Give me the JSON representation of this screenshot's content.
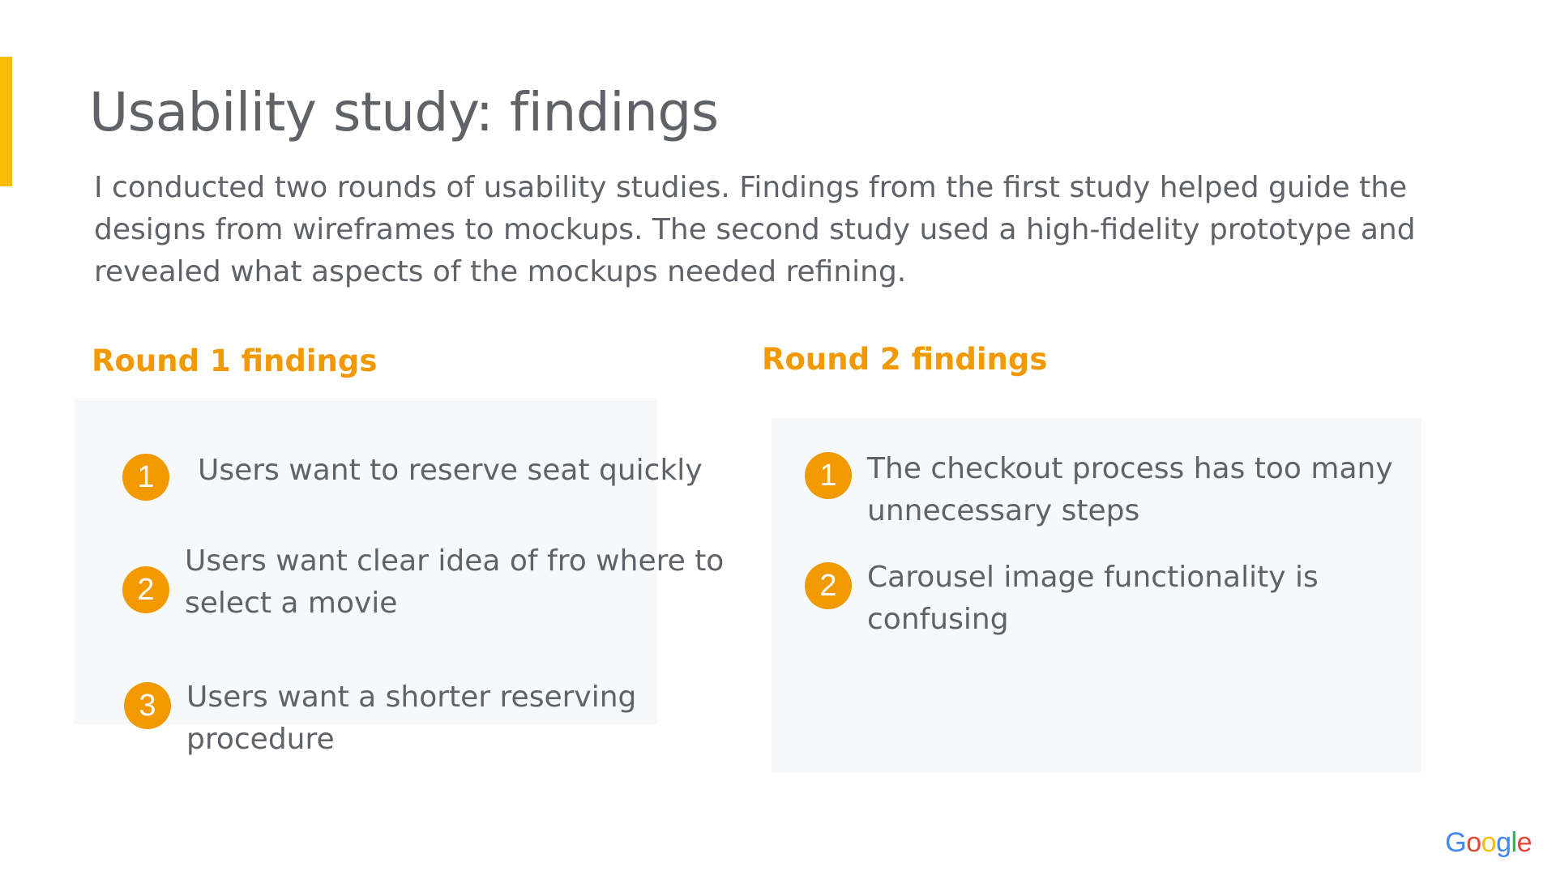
{
  "slide": {
    "title": "Usability study: findings",
    "intro": "I conducted two rounds of usability studies. Findings from the first study helped guide the designs from wireframes to mockups. The second study used a high-fidelity prototype and revealed what aspects of the mockups needed refining."
  },
  "round1": {
    "heading": "Round 1 findings",
    "findings": [
      {
        "number": "1",
        "text": "Users want to reserve seat quickly"
      },
      {
        "number": "2",
        "text": "Users want clear idea of fro where to select a movie"
      },
      {
        "number": "3",
        "text": "Users want a shorter reserving procedure"
      }
    ]
  },
  "round2": {
    "heading": "Round 2 findings",
    "findings": [
      {
        "number": "1",
        "text": "The checkout process has too many unnecessary steps"
      },
      {
        "number": "2",
        "text": "Carousel image functionality is confusing"
      }
    ]
  },
  "logo": {
    "name": "Google",
    "letters": [
      "G",
      "o",
      "o",
      "g",
      "l",
      "e"
    ]
  },
  "colors": {
    "accent": "#fbbc04",
    "heading": "#f29900",
    "badge": "#f29900",
    "text": "#5f6368",
    "panel": "#f7f8fa"
  }
}
